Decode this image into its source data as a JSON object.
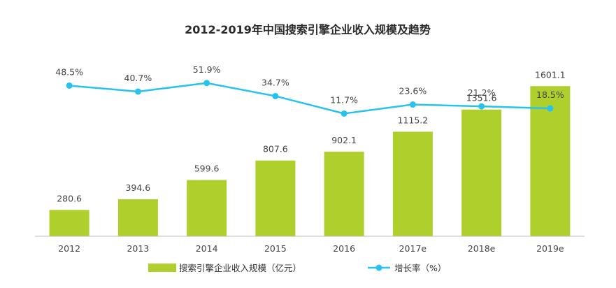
{
  "chart_data": {
    "type": "bar",
    "title": "2012-2019年中国搜索引擎企业收入规模及趋势",
    "categories": [
      "2012",
      "2013",
      "2014",
      "2015",
      "2016",
      "2017e",
      "2018e",
      "2019e"
    ],
    "series": [
      {
        "name": "搜索引擎企业收入规模（亿元）",
        "type": "bar",
        "values": [
          280.6,
          394.6,
          599.6,
          807.6,
          902.1,
          1115.2,
          1351.6,
          1601.1
        ],
        "labels": [
          "280.6",
          "394.6",
          "599.6",
          "807.6",
          "902.1",
          "1115.2",
          "1351.6",
          "1601.1"
        ]
      },
      {
        "name": "增长率（%）",
        "type": "line",
        "values": [
          48.5,
          40.7,
          51.9,
          34.7,
          11.7,
          23.6,
          21.2,
          18.5
        ],
        "labels": [
          "48.5%",
          "40.7%",
          "51.9%",
          "34.7%",
          "11.7%",
          "23.6%",
          "21.2%",
          "18.5%"
        ]
      }
    ],
    "ylim_bar": [
      0,
      1700
    ],
    "ylim_line": [
      -150,
      60
    ],
    "grid": false,
    "legend_position": "bottom",
    "colors": {
      "bar": "#aecf2c",
      "line": "#27c3ee",
      "axis": "#bbbbbb"
    }
  }
}
